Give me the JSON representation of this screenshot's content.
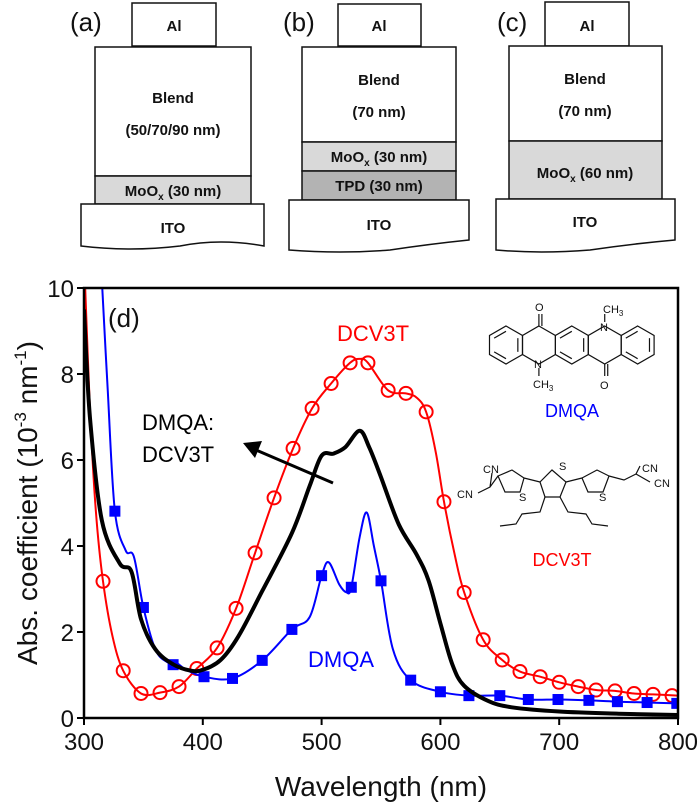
{
  "devices": [
    {
      "panel": "(a)",
      "top": "Al",
      "blend": "Blend",
      "blend_thickness": "(50/70/90 nm)",
      "layers": [
        {
          "name": "MoO",
          "sub": "x",
          "thickness": "(30 nm)",
          "color": "#d9d9d9"
        }
      ],
      "substrate": "ITO"
    },
    {
      "panel": "(b)",
      "top": "Al",
      "blend": "Blend",
      "blend_thickness": "(70 nm)",
      "layers": [
        {
          "name": "MoO",
          "sub": "x",
          "thickness": "(30 nm)",
          "color": "#d9d9d9"
        },
        {
          "name": "TPD",
          "sub": "",
          "thickness": "(30 nm)",
          "color": "#b3b3b3"
        }
      ],
      "substrate": "ITO"
    },
    {
      "panel": "(c)",
      "top": "Al",
      "blend": "Blend",
      "blend_thickness": "(70 nm)",
      "layers": [
        {
          "name": "MoO",
          "sub": "x",
          "thickness": "(60 nm)",
          "color": "#d9d9d9"
        }
      ],
      "substrate": "ITO"
    }
  ],
  "chart_data": {
    "type": "line",
    "panel": "(d)",
    "xlabel": "Wavelength (nm)",
    "ylabel_main": "Abs. coefficient (10",
    "ylabel_exp1": "-3",
    "ylabel_mid": " nm",
    "ylabel_exp2": "-1",
    "ylabel_end": ")",
    "xlim": [
      300,
      800
    ],
    "ylim": [
      0,
      10
    ],
    "xticks": [
      300,
      400,
      500,
      600,
      700,
      800
    ],
    "yticks": [
      0,
      2,
      4,
      6,
      8,
      10
    ],
    "grid": false,
    "series": [
      {
        "name": "DCV3T",
        "color": "#ff0000",
        "marker": "open-circle",
        "line": [
          [
            301,
            10
          ],
          [
            305,
            7.2
          ],
          [
            310,
            4.8
          ],
          [
            316,
            3.18
          ],
          [
            324,
            1.9
          ],
          [
            333,
            1.1
          ],
          [
            348,
            0.57
          ],
          [
            364,
            0.59
          ],
          [
            380,
            0.73
          ],
          [
            395,
            1.15
          ],
          [
            412,
            1.63
          ],
          [
            428,
            2.55
          ],
          [
            444,
            3.84
          ],
          [
            460,
            5.12
          ],
          [
            476,
            6.27
          ],
          [
            492,
            7.2
          ],
          [
            508,
            7.78
          ],
          [
            524,
            8.26
          ],
          [
            532,
            8.35
          ],
          [
            539,
            8.26
          ],
          [
            556,
            7.62
          ],
          [
            571,
            7.55
          ],
          [
            580,
            7.45
          ],
          [
            588,
            7.12
          ],
          [
            596,
            6.2
          ],
          [
            603,
            5.03
          ],
          [
            612,
            3.8
          ],
          [
            620,
            2.92
          ],
          [
            636,
            1.82
          ],
          [
            652,
            1.35
          ],
          [
            667,
            1.08
          ],
          [
            684,
            0.96
          ],
          [
            700,
            0.83
          ],
          [
            716,
            0.73
          ],
          [
            731,
            0.65
          ],
          [
            747,
            0.63
          ],
          [
            763,
            0.57
          ],
          [
            779,
            0.55
          ],
          [
            800,
            0.52
          ]
        ],
        "markers": [
          [
            316,
            3.18
          ],
          [
            333,
            1.1
          ],
          [
            348,
            0.57
          ],
          [
            364,
            0.59
          ],
          [
            380,
            0.73
          ],
          [
            395,
            1.15
          ],
          [
            412,
            1.63
          ],
          [
            428,
            2.55
          ],
          [
            444,
            3.84
          ],
          [
            460,
            5.12
          ],
          [
            476,
            6.27
          ],
          [
            492,
            7.2
          ],
          [
            508,
            7.78
          ],
          [
            524,
            8.26
          ],
          [
            539,
            8.26
          ],
          [
            556,
            7.62
          ],
          [
            571,
            7.55
          ],
          [
            588,
            7.12
          ],
          [
            603,
            5.03
          ],
          [
            620,
            2.92
          ],
          [
            636,
            1.82
          ],
          [
            652,
            1.35
          ],
          [
            667,
            1.08
          ],
          [
            684,
            0.96
          ],
          [
            700,
            0.83
          ],
          [
            716,
            0.73
          ],
          [
            731,
            0.65
          ],
          [
            747,
            0.63
          ],
          [
            763,
            0.57
          ],
          [
            779,
            0.55
          ],
          [
            795,
            0.52
          ]
        ]
      },
      {
        "name": "DMQA",
        "color": "#0000ff",
        "marker": "filled-square",
        "line": [
          [
            315,
            10.2
          ],
          [
            320,
            7.6
          ],
          [
            326,
            4.81
          ],
          [
            335,
            3.9
          ],
          [
            342,
            3.75
          ],
          [
            350,
            2.57
          ],
          [
            360,
            1.6
          ],
          [
            370,
            1.3
          ],
          [
            378,
            1.28
          ],
          [
            386,
            1.12
          ],
          [
            401,
            0.96
          ],
          [
            425,
            0.92
          ],
          [
            450,
            1.34
          ],
          [
            475,
            2.06
          ],
          [
            490,
            2.35
          ],
          [
            500,
            3.31
          ],
          [
            506,
            3.62
          ],
          [
            515,
            3.1
          ],
          [
            521,
            2.92
          ],
          [
            525,
            3.04
          ],
          [
            532,
            4.2
          ],
          [
            538,
            4.78
          ],
          [
            544,
            4.0
          ],
          [
            550,
            3.19
          ],
          [
            560,
            1.6
          ],
          [
            575,
            0.88
          ],
          [
            600,
            0.61
          ],
          [
            624,
            0.52
          ],
          [
            650,
            0.52
          ],
          [
            674,
            0.43
          ],
          [
            699,
            0.43
          ],
          [
            725,
            0.41
          ],
          [
            749,
            0.38
          ],
          [
            774,
            0.36
          ],
          [
            800,
            0.34
          ]
        ],
        "markers": [
          [
            326,
            4.81
          ],
          [
            350,
            2.57
          ],
          [
            375,
            1.24
          ],
          [
            401,
            0.96
          ],
          [
            425,
            0.92
          ],
          [
            450,
            1.34
          ],
          [
            475,
            2.06
          ],
          [
            500,
            3.31
          ],
          [
            525,
            3.04
          ],
          [
            550,
            3.19
          ],
          [
            575,
            0.88
          ],
          [
            600,
            0.61
          ],
          [
            624,
            0.52
          ],
          [
            650,
            0.52
          ],
          [
            674,
            0.43
          ],
          [
            699,
            0.43
          ],
          [
            725,
            0.41
          ],
          [
            749,
            0.38
          ],
          [
            774,
            0.36
          ],
          [
            799,
            0.34
          ]
        ]
      },
      {
        "name": "DMQA:DCV3T",
        "color": "#000000",
        "marker": "none",
        "line": [
          [
            300,
            9.5
          ],
          [
            305,
            7
          ],
          [
            315,
            4.6
          ],
          [
            330,
            3.6
          ],
          [
            340,
            3.4
          ],
          [
            348,
            2.3
          ],
          [
            360,
            1.6
          ],
          [
            375,
            1.25
          ],
          [
            390,
            1.1
          ],
          [
            400,
            1.12
          ],
          [
            415,
            1.35
          ],
          [
            430,
            1.9
          ],
          [
            450,
            2.95
          ],
          [
            475,
            4.3
          ],
          [
            490,
            5.4
          ],
          [
            500,
            6.1
          ],
          [
            510,
            6.15
          ],
          [
            520,
            6.3
          ],
          [
            532,
            6.68
          ],
          [
            540,
            6.3
          ],
          [
            550,
            5.6
          ],
          [
            565,
            4.5
          ],
          [
            580,
            3.8
          ],
          [
            590,
            3.2
          ],
          [
            600,
            2.2
          ],
          [
            610,
            1.25
          ],
          [
            620,
            0.75
          ],
          [
            640,
            0.4
          ],
          [
            660,
            0.25
          ],
          [
            700,
            0.15
          ],
          [
            750,
            0.1
          ],
          [
            800,
            0.07
          ]
        ],
        "markers": []
      }
    ],
    "annotations": {
      "dcv3t_label": "DCV3T",
      "dmqa_label": "DMQA",
      "blend_label_1": "DMQA:",
      "blend_label_2": "DCV3T"
    },
    "structures": {
      "dmqa": {
        "name": "DMQA",
        "atoms": {
          "o": "O",
          "n": "N",
          "ch": "CH",
          "three": "3"
        }
      },
      "dcv3t": {
        "name": "DCV3T",
        "atoms": {
          "cn": "CN",
          "s": "S"
        }
      }
    }
  }
}
